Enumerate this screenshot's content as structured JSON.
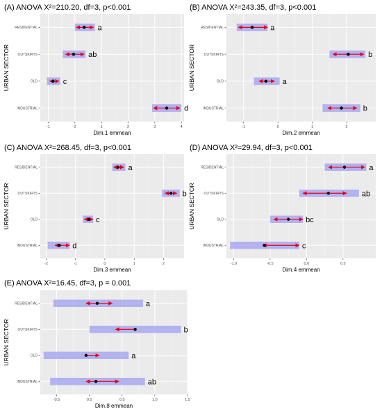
{
  "chart_data": [
    {
      "type": "interval",
      "title": "(A) ANOVA X²=210.20, df=3, p<0.001",
      "xlabel": "Dim.1 emmean",
      "ylabel": "URBAN SECTOR",
      "xlim": [
        -1.3,
        4.1
      ],
      "xticks": [
        "-1",
        "0",
        "1",
        "2",
        "3",
        "4"
      ],
      "categories": [
        "RESIDENTIAL",
        "OUTSKIRTS",
        "OLD",
        "INDUSTRIAL"
      ],
      "emmean": [
        0.35,
        -0.05,
        -0.82,
        3.45
      ],
      "ci": [
        [
          0.0,
          0.75
        ],
        [
          -0.45,
          0.4
        ],
        [
          -1.05,
          -0.55
        ],
        [
          2.9,
          4.0
        ]
      ],
      "comparison_arrows": [
        [
          0.05,
          0.7
        ],
        [
          -0.35,
          0.35
        ],
        [
          -0.95,
          -0.6
        ],
        [
          2.95,
          3.95
        ]
      ],
      "groups": [
        "a",
        "ab",
        "c",
        "d"
      ]
    },
    {
      "type": "interval",
      "title": "(B) ANOVA X²=243.35, df=3, p<0.001",
      "xlabel": "Dim.2 emmean",
      "ylabel": "URBAN SECTOR",
      "xlim": [
        -1.5,
        2.85
      ],
      "xticks": [
        "-1",
        "0",
        "1",
        "2"
      ],
      "categories": [
        "RESIDENTIAL",
        "OUTSKIRTS",
        "OLD",
        "INDUSTRIAL"
      ],
      "emmean": [
        -0.75,
        2.05,
        -0.35,
        1.85
      ],
      "ci": [
        [
          -1.2,
          -0.3
        ],
        [
          1.5,
          2.55
        ],
        [
          -0.7,
          0.05
        ],
        [
          1.3,
          2.4
        ]
      ],
      "comparison_arrows": [
        [
          -1.15,
          -0.3
        ],
        [
          1.6,
          2.5
        ],
        [
          -0.55,
          -0.1
        ],
        [
          1.45,
          2.3
        ]
      ],
      "groups": [
        "a",
        "b",
        "a",
        "b"
      ]
    },
    {
      "type": "interval",
      "title": "(C) ANOVA X²=268.45, df=3, p<0.001",
      "xlabel": "Dim.3 emmean",
      "ylabel": "URBAN SECTOR",
      "xlim": [
        -2.2,
        2.7
      ],
      "xticks": [
        "-2",
        "-1",
        "0",
        "1",
        "2"
      ],
      "categories": [
        "RESIDENTIAL",
        "OUTSKIRTS",
        "OLD",
        "INDUSTRIAL"
      ],
      "emmean": [
        0.45,
        2.25,
        -0.55,
        -1.55
      ],
      "ci": [
        [
          0.25,
          0.7
        ],
        [
          1.95,
          2.55
        ],
        [
          -0.75,
          -0.4
        ],
        [
          -1.95,
          -1.2
        ]
      ],
      "comparison_arrows": [
        [
          0.3,
          0.65
        ],
        [
          2.05,
          2.45
        ],
        [
          -0.7,
          -0.4
        ],
        [
          -1.7,
          -1.2
        ]
      ],
      "groups": [
        "a",
        "b",
        "c",
        "d"
      ]
    },
    {
      "type": "interval",
      "title": "(D) ANOVA X²=29.94, df=3, p<0.001",
      "xlabel": "Dim.4 emmean",
      "ylabel": "URBAN SECTOR",
      "xlim": [
        -1.1,
        0.95
      ],
      "xticks": [
        "-1.0",
        "-0.5",
        "0.0",
        "0.5"
      ],
      "categories": [
        "RESIDENTIAL",
        "OUTSKIRTS",
        "OLD",
        "INDUSTRIAL"
      ],
      "emmean": [
        0.52,
        0.3,
        -0.25,
        -0.58
      ],
      "ci": [
        [
          0.25,
          0.82
        ],
        [
          -0.1,
          0.72
        ],
        [
          -0.5,
          -0.05
        ],
        [
          -1.05,
          -0.1
        ]
      ],
      "comparison_arrows": [
        [
          0.3,
          0.8
        ],
        [
          -0.05,
          0.55
        ],
        [
          -0.45,
          -0.05
        ],
        [
          -0.6,
          -0.1
        ]
      ],
      "groups": [
        "a",
        "ab",
        "bc",
        "c"
      ]
    },
    {
      "type": "interval",
      "title": "(E) ANOVA X²=16.45, df=3, p = 0.001",
      "xlabel": "Dim.8 emmean",
      "ylabel": "URBAN SECTOR",
      "xlim": [
        -0.75,
        1.5
      ],
      "xticks": [
        "-0.5",
        "0.0",
        "0.5",
        "1.0",
        "1.5"
      ],
      "categories": [
        "RESIDENTIAL",
        "OUTSKIRTS",
        "OLD",
        "INDUSTRIAL"
      ],
      "emmean": [
        0.12,
        0.7,
        -0.05,
        0.1
      ],
      "ci": [
        [
          -0.55,
          0.82
        ],
        [
          0.0,
          1.4
        ],
        [
          -0.7,
          0.6
        ],
        [
          -0.6,
          0.85
        ]
      ],
      "comparison_arrows": [
        [
          -0.05,
          0.35
        ],
        [
          0.4,
          0.7
        ],
        [
          -0.05,
          0.15
        ],
        [
          -0.05,
          0.45
        ]
      ],
      "groups": [
        "a",
        "b",
        "a",
        "ab"
      ]
    }
  ],
  "colors": {
    "panel_bg": "#ebebeb",
    "grid": "#ffffff",
    "ci_bar": "#a8a8f0",
    "arrow": "#e8001c",
    "point": "#000000",
    "text": "#000000",
    "tick_text": "#4d4d4d"
  }
}
